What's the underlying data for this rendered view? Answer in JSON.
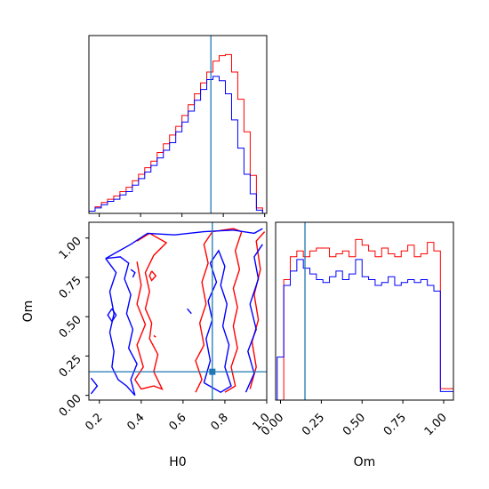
{
  "chart_data": {
    "type": "corner",
    "parameters": [
      "H0",
      "Om"
    ],
    "truths": {
      "H0": 0.74,
      "Om": 0.15
    },
    "truth_color": "#1f77b4",
    "series_colors": {
      "red": "#ff0000",
      "blue": "#0000ff"
    },
    "axes": {
      "h0_hist": {
        "xlim": [
          0.15,
          1.01
        ],
        "xticks": [
          0.2,
          0.4,
          0.6,
          0.8,
          1.0
        ],
        "bin_edges": [
          0.15,
          0.18,
          0.21,
          0.24,
          0.27,
          0.3,
          0.33,
          0.36,
          0.39,
          0.42,
          0.45,
          0.48,
          0.51,
          0.54,
          0.57,
          0.6,
          0.63,
          0.66,
          0.69,
          0.72,
          0.75,
          0.78,
          0.81,
          0.84,
          0.87,
          0.9,
          0.93,
          0.96,
          0.99
        ],
        "red_counts": [
          0.2,
          0.6,
          1.0,
          1.3,
          1.6,
          2.0,
          2.4,
          3.0,
          3.6,
          4.2,
          4.8,
          5.6,
          6.4,
          7.2,
          8.0,
          9.0,
          10.0,
          11.0,
          12.0,
          13.0,
          14.0,
          14.5,
          14.6,
          13.0,
          10.5,
          7.5,
          3.5,
          0.5
        ],
        "blue_counts": [
          0.2,
          0.5,
          0.8,
          1.1,
          1.3,
          1.7,
          2.0,
          2.6,
          3.2,
          3.8,
          4.4,
          5.1,
          5.8,
          6.5,
          7.5,
          8.4,
          9.4,
          10.4,
          11.4,
          12.3,
          12.6,
          12.2,
          11.0,
          8.6,
          6.0,
          3.6,
          1.8,
          0.3
        ]
      },
      "om_hist": {
        "xlim": [
          -0.03,
          1.06
        ],
        "xticks": [
          0.0,
          0.25,
          0.5,
          0.75,
          1.0
        ],
        "xtick_labels": [
          "0.00",
          "0.25",
          "0.50",
          "0.75",
          "1.00"
        ],
        "bin_edges": [
          -0.02,
          0.02,
          0.06,
          0.1,
          0.14,
          0.18,
          0.22,
          0.26,
          0.3,
          0.34,
          0.38,
          0.42,
          0.46,
          0.5,
          0.54,
          0.58,
          0.62,
          0.66,
          0.7,
          0.74,
          0.78,
          0.82,
          0.86,
          0.9,
          0.94,
          0.98,
          1.02,
          1.06
        ],
        "red_counts": [
          0,
          4.2,
          5.0,
          5.2,
          5.0,
          5.2,
          5.3,
          5.3,
          5.0,
          5.1,
          5.2,
          5.0,
          5.6,
          5.4,
          5.2,
          5.0,
          5.3,
          5.1,
          5.0,
          5.2,
          5.4,
          5.0,
          5.1,
          5.5,
          5.2,
          0.4,
          0.4
        ],
        "blue_counts": [
          1.5,
          4.0,
          4.5,
          4.9,
          4.6,
          4.4,
          4.2,
          4.1,
          4.3,
          4.5,
          4.2,
          4.4,
          4.9,
          4.3,
          4.2,
          4.0,
          4.1,
          4.3,
          4.0,
          4.1,
          4.2,
          4.1,
          4.2,
          4.0,
          3.8,
          0.3,
          0.3
        ],
        "ymax": 6.2
      },
      "joint": {
        "xlim": [
          0.15,
          1.0
        ],
        "ylim": [
          -0.03,
          1.1
        ],
        "xticks": [
          0.2,
          0.4,
          0.6,
          0.8,
          1.0
        ],
        "xtick_labels": [
          "0.2",
          "0.4",
          "0.6",
          "0.8",
          "1.0"
        ],
        "yticks": [
          0.0,
          0.25,
          0.5,
          0.75,
          1.0
        ],
        "ytick_labels": [
          "0.00",
          "0.25",
          "0.50",
          "0.75",
          "1.00"
        ],
        "xlabel": "H0",
        "ylabel": "Om",
        "red_contours": [
          [
            [
              0.38,
              0.85
            ],
            [
              0.4,
              0.7
            ],
            [
              0.38,
              0.58
            ],
            [
              0.42,
              0.45
            ],
            [
              0.38,
              0.32
            ],
            [
              0.41,
              0.18
            ],
            [
              0.37,
              0.1
            ],
            [
              0.4,
              0.04
            ],
            [
              0.46,
              0.06
            ],
            [
              0.5,
              0.04
            ],
            [
              0.46,
              0.15
            ],
            [
              0.48,
              0.26
            ],
            [
              0.44,
              0.36
            ],
            [
              0.45,
              0.46
            ],
            [
              0.42,
              0.55
            ],
            [
              0.44,
              0.66
            ],
            [
              0.42,
              0.78
            ],
            [
              0.46,
              0.89
            ],
            [
              0.52,
              0.97
            ],
            [
              0.44,
              1.03
            ],
            [
              0.38,
              0.98
            ]
          ],
          [
            [
              0.66,
              0.02
            ],
            [
              0.69,
              0.1
            ],
            [
              0.66,
              0.22
            ],
            [
              0.7,
              0.32
            ],
            [
              0.68,
              0.46
            ],
            [
              0.71,
              0.58
            ],
            [
              0.69,
              0.72
            ],
            [
              0.72,
              0.84
            ],
            [
              0.7,
              0.96
            ],
            [
              0.74,
              1.04
            ],
            [
              0.84,
              1.06
            ],
            [
              0.88,
              1.04
            ],
            [
              0.85,
              0.92
            ],
            [
              0.87,
              0.8
            ],
            [
              0.84,
              0.68
            ],
            [
              0.86,
              0.56
            ],
            [
              0.84,
              0.44
            ],
            [
              0.86,
              0.3
            ],
            [
              0.83,
              0.18
            ],
            [
              0.85,
              0.06
            ],
            [
              0.8,
              0.02
            ]
          ],
          [
            [
              0.92,
              0.04
            ],
            [
              0.95,
              0.18
            ],
            [
              0.93,
              0.34
            ],
            [
              0.96,
              0.48
            ],
            [
              0.94,
              0.64
            ],
            [
              0.97,
              0.8
            ],
            [
              0.95,
              0.98
            ],
            [
              0.99,
              1.04
            ]
          ],
          [
            [
              0.46,
              0.38
            ],
            [
              0.47,
              0.37
            ]
          ],
          [
            [
              0.45,
              0.79
            ],
            [
              0.47,
              0.76
            ],
            [
              0.45,
              0.73
            ],
            [
              0.44,
              0.76
            ],
            [
              0.45,
              0.79
            ]
          ]
        ],
        "blue_contours": [
          [
            [
              0.23,
              0.87
            ],
            [
              0.35,
              0.96
            ],
            [
              0.43,
              1.03
            ],
            [
              0.56,
              1.02
            ],
            [
              0.7,
              1.04
            ],
            [
              0.84,
              1.05
            ],
            [
              0.94,
              1.03
            ],
            [
              0.98,
              1.06
            ]
          ],
          [
            [
              0.23,
              0.87
            ],
            [
              0.28,
              0.78
            ],
            [
              0.25,
              0.66
            ],
            [
              0.27,
              0.52
            ],
            [
              0.25,
              0.4
            ],
            [
              0.27,
              0.28
            ],
            [
              0.26,
              0.18
            ],
            [
              0.29,
              0.1
            ],
            [
              0.33,
              0.06
            ],
            [
              0.37,
              0.0
            ],
            [
              0.35,
              0.1
            ],
            [
              0.38,
              0.2
            ],
            [
              0.34,
              0.3
            ],
            [
              0.36,
              0.42
            ],
            [
              0.33,
              0.52
            ],
            [
              0.35,
              0.64
            ],
            [
              0.32,
              0.74
            ],
            [
              0.34,
              0.84
            ],
            [
              0.3,
              0.88
            ],
            [
              0.23,
              0.87
            ]
          ],
          [
            [
              0.16,
              0.11
            ],
            [
              0.19,
              0.06
            ],
            [
              0.16,
              0.01
            ]
          ],
          [
            [
              0.7,
              0.08
            ],
            [
              0.73,
              0.22
            ],
            [
              0.71,
              0.36
            ],
            [
              0.74,
              0.48
            ],
            [
              0.72,
              0.6
            ],
            [
              0.76,
              0.72
            ],
            [
              0.73,
              0.84
            ],
            [
              0.77,
              0.92
            ],
            [
              0.8,
              0.82
            ],
            [
              0.78,
              0.7
            ],
            [
              0.81,
              0.58
            ],
            [
              0.79,
              0.44
            ],
            [
              0.82,
              0.32
            ],
            [
              0.8,
              0.18
            ],
            [
              0.83,
              0.06
            ],
            [
              0.78,
              0.02
            ],
            [
              0.7,
              0.08
            ]
          ],
          [
            [
              0.9,
              0.02
            ],
            [
              0.94,
              0.14
            ],
            [
              0.91,
              0.28
            ],
            [
              0.95,
              0.42
            ],
            [
              0.92,
              0.58
            ],
            [
              0.96,
              0.74
            ],
            [
              0.94,
              0.88
            ],
            [
              0.98,
              0.96
            ]
          ],
          [
            [
              0.26,
              0.55
            ],
            [
              0.28,
              0.51
            ],
            [
              0.26,
              0.47
            ],
            [
              0.24,
              0.51
            ],
            [
              0.26,
              0.55
            ]
          ],
          [
            [
              0.35,
              0.8
            ],
            [
              0.37,
              0.78
            ],
            [
              0.36,
              0.75
            ]
          ],
          [
            [
              0.62,
              0.55
            ],
            [
              0.64,
              0.52
            ]
          ]
        ]
      }
    }
  }
}
